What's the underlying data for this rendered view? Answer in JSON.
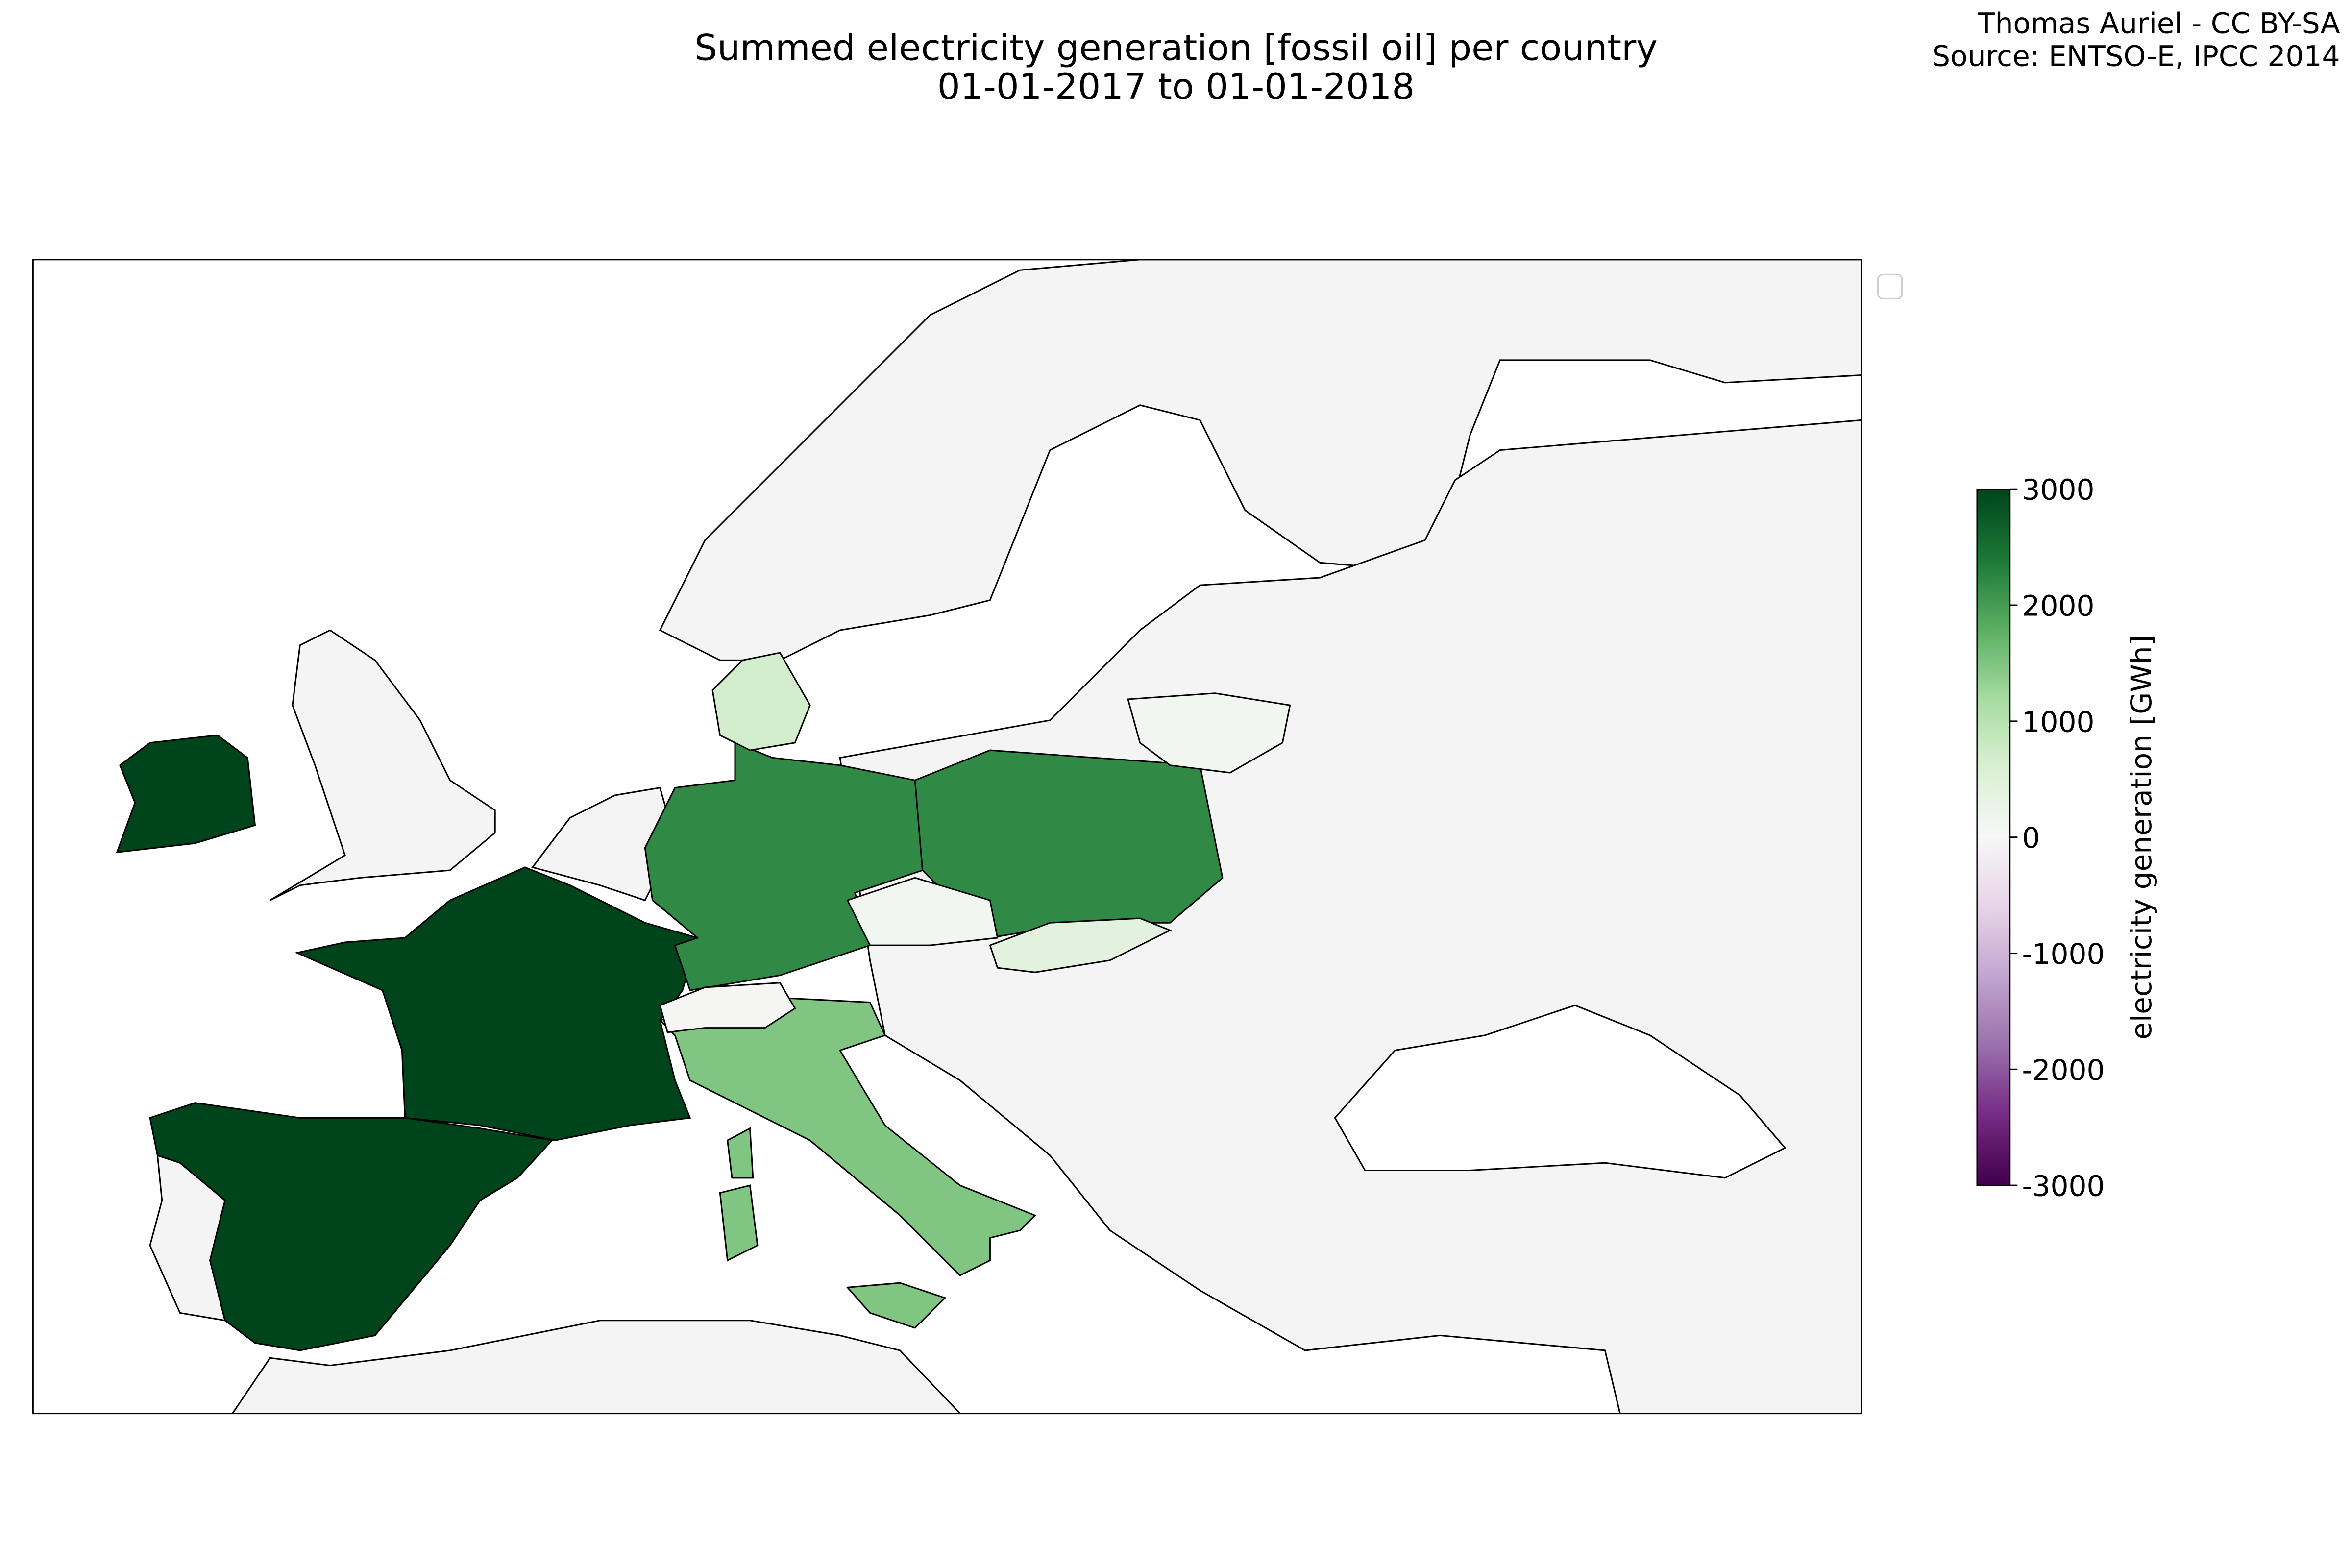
{
  "chart_data": {
    "type": "choropleth",
    "title": "Summed electricity generation [fossil oil] per country",
    "subtitle": "01-01-2017 to 01-01-2018",
    "attribution": [
      "Thomas Auriel - CC BY-SA",
      "Source: ENTSO-E, IPCC 2014"
    ],
    "colorbar_label": "electricity generation [GWh]",
    "clim": [
      -3000,
      3000
    ],
    "cticks": [
      3000,
      2000,
      1000,
      0,
      -1000,
      -2000,
      -3000
    ],
    "colormap": [
      "#40004b",
      "#762a83",
      "#9970ab",
      "#c2a5cf",
      "#e7d4e8",
      "#f7f7f7",
      "#d9f0d3",
      "#a6dba0",
      "#5aae61",
      "#1b7837",
      "#00441b"
    ],
    "values": [
      3000,
      3000,
      3000,
      2200,
      2200,
      1500,
      1500,
      1500,
      1500,
      700,
      400,
      100,
      100,
      50
    ]
  }
}
